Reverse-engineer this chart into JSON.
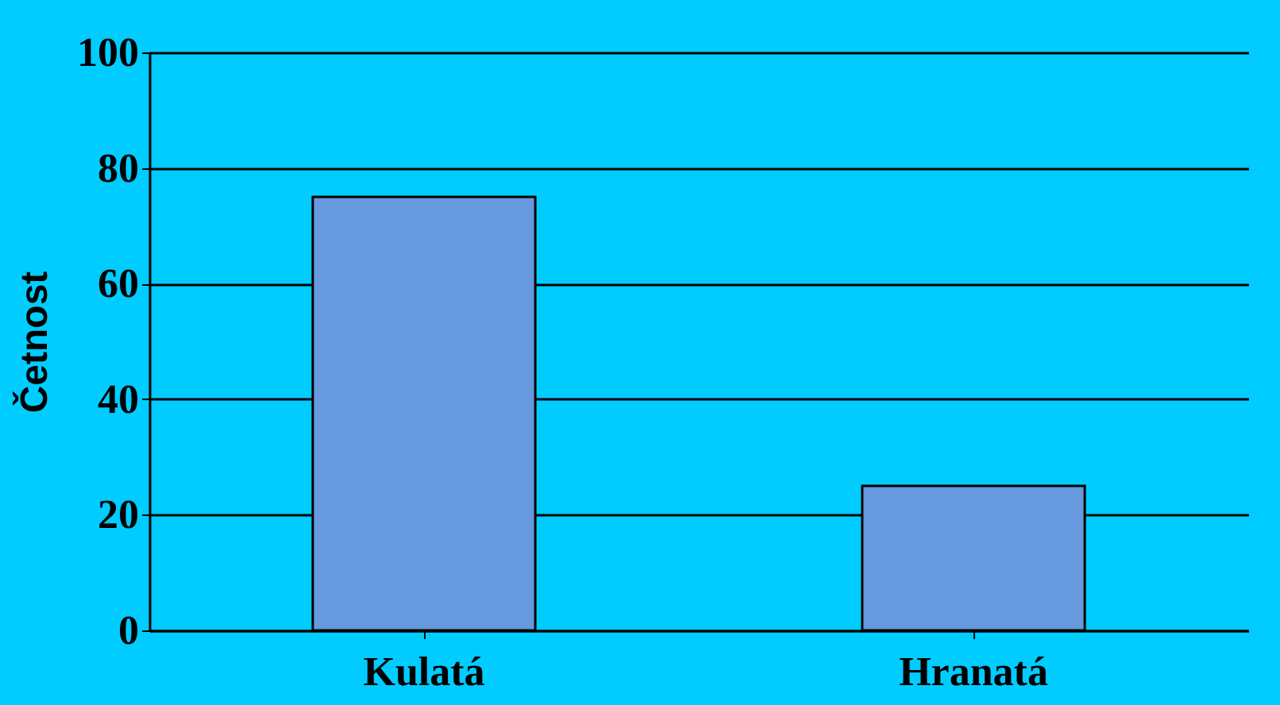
{
  "chart_data": {
    "type": "bar",
    "ylabel": "Četnost",
    "categories": [
      "Kulatá",
      "Hranatá"
    ],
    "values": [
      75,
      25
    ],
    "color": "#6699dd",
    "ylim": [
      0,
      100
    ],
    "yticks": [
      0,
      20,
      40,
      60,
      80,
      100
    ],
    "grid": "y"
  }
}
